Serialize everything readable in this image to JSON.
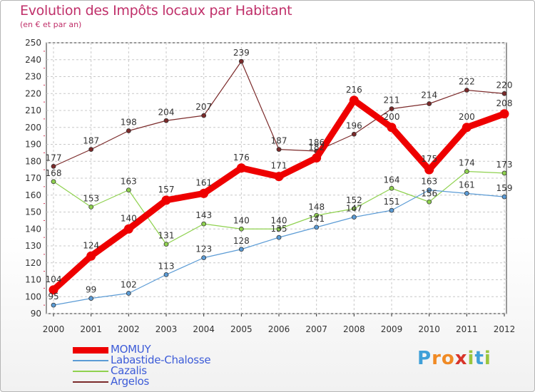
{
  "chart_data": {
    "type": "line",
    "title": "Evolution des Impôts locaux par Habitant",
    "subtitle": "(en € et par an)",
    "xlabel": "",
    "ylabel": "",
    "ylim": [
      90,
      250
    ],
    "yticks": [
      90,
      100,
      110,
      120,
      130,
      140,
      150,
      160,
      170,
      180,
      190,
      200,
      210,
      220,
      230,
      240,
      250
    ],
    "x": [
      2000,
      2001,
      2002,
      2003,
      2004,
      2005,
      2006,
      2007,
      2008,
      2009,
      2010,
      2011,
      2012
    ],
    "grid": true,
    "legend_position": "bottom-left",
    "series": [
      {
        "name": "MOMUY",
        "color": "#ee0000",
        "values": [
          104,
          124,
          140,
          157,
          161,
          176,
          171,
          182,
          216,
          200,
          175,
          200,
          208
        ]
      },
      {
        "name": "Labastide-Chalosse",
        "color": "#5b9bd5",
        "values": [
          95,
          99,
          102,
          113,
          123,
          128,
          135,
          141,
          147,
          151,
          163,
          161,
          159
        ]
      },
      {
        "name": "Cazalis",
        "color": "#8fd14f",
        "values": [
          168,
          153,
          163,
          131,
          143,
          140,
          140,
          148,
          152,
          164,
          156,
          174,
          173
        ]
      },
      {
        "name": "Argelos",
        "color": "#7b2a2a",
        "values": [
          177,
          187,
          198,
          204,
          207,
          239,
          187,
          186,
          196,
          211,
          214,
          222,
          220
        ]
      }
    ]
  },
  "logo": {
    "letters": [
      "P",
      "r",
      "o",
      "x",
      "i",
      "t",
      "i"
    ]
  }
}
